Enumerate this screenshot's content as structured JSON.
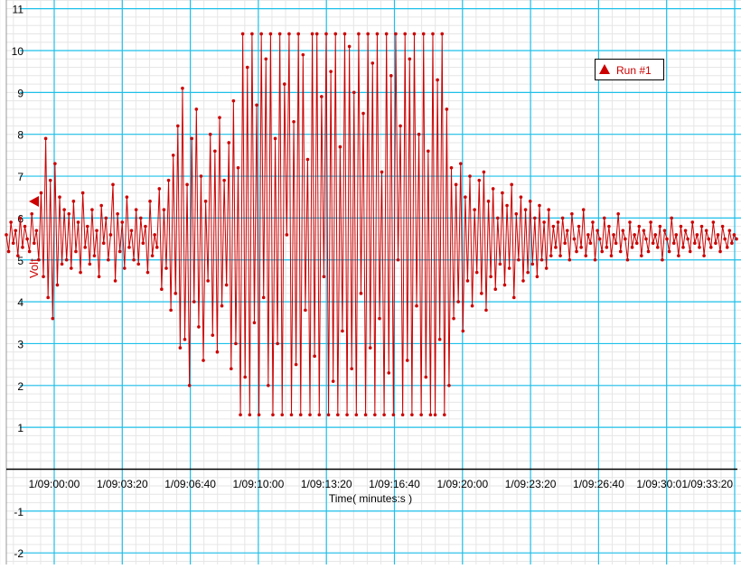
{
  "chart_data": {
    "type": "line",
    "title": "",
    "xlabel": "Time( minutes:s )",
    "ylabel": "Volt",
    "ylim": [
      -2,
      11
    ],
    "yticks": [
      "11",
      "10",
      "9",
      "8",
      "7",
      "6",
      "5",
      "4",
      "3",
      "2",
      "1",
      "-1",
      "-2"
    ],
    "xticks": [
      "1/09:00:00",
      "1/09:03:20",
      "1/09:06:40",
      "1/09:10:00",
      "1/09:13:20",
      "1/09:16:40",
      "1/09:20:00",
      "1/09:23:20",
      "1/09:26:40",
      "1/09:30:01/09:33:20"
    ],
    "x_start": "1/08:57:40",
    "x_end": "1/09:33:20",
    "grid": true,
    "legend_position": "top-right",
    "colors": {
      "series": "#cc0000",
      "major_grid": "#1ec0ea",
      "minor_grid": "#e6e6e6",
      "axis": "#000000"
    },
    "series": [
      {
        "name": "Run #1",
        "marker": "triangle",
        "values": [
          5.6,
          5.2,
          5.9,
          5.4,
          5.7,
          5.1,
          6.0,
          5.3,
          5.8,
          5.5,
          5.2,
          6.1,
          5.4,
          5.7,
          5.0,
          6.6,
          4.6,
          7.9,
          4.1,
          6.9,
          3.6,
          7.3,
          4.4,
          6.5,
          4.9,
          6.2,
          5.0,
          6.1,
          4.8,
          6.4,
          5.2,
          5.9,
          4.7,
          6.6,
          5.3,
          5.8,
          4.9,
          6.2,
          5.1,
          5.7,
          4.6,
          6.3,
          5.4,
          6.0,
          5.0,
          5.6,
          6.8,
          4.5,
          6.1,
          5.2,
          5.9,
          4.8,
          6.5,
          5.3,
          5.7,
          5.0,
          6.2,
          4.9,
          6.0,
          5.4,
          5.8,
          4.7,
          6.4,
          5.1,
          5.6,
          5.3,
          6.7,
          4.3,
          6.2,
          4.8,
          6.9,
          3.8,
          7.5,
          4.2,
          8.2,
          2.9,
          9.1,
          3.1,
          6.8,
          2.0,
          7.9,
          4.0,
          8.6,
          3.4,
          7.0,
          2.6,
          6.4,
          4.5,
          8.0,
          3.2,
          7.6,
          2.8,
          8.4,
          3.9,
          6.9,
          4.4,
          7.8,
          2.4,
          8.8,
          3.0,
          7.2,
          1.3,
          10.4,
          2.2,
          9.6,
          1.3,
          10.4,
          3.5,
          8.7,
          1.3,
          10.4,
          4.1,
          9.8,
          2.0,
          10.4,
          1.3,
          7.9,
          3.0,
          10.4,
          1.3,
          9.2,
          5.6,
          10.4,
          1.3,
          8.3,
          2.5,
          10.4,
          1.3,
          9.9,
          3.8,
          7.4,
          1.3,
          10.4,
          2.7,
          10.4,
          1.3,
          8.9,
          4.6,
          10.4,
          1.3,
          9.5,
          2.1,
          10.4,
          1.3,
          7.7,
          3.3,
          10.4,
          1.3,
          10.1,
          2.4,
          9.0,
          1.3,
          10.4,
          4.2,
          8.5,
          1.3,
          10.4,
          2.9,
          9.7,
          1.3,
          10.4,
          3.6,
          7.1,
          1.3,
          10.4,
          2.3,
          9.4,
          1.3,
          10.4,
          5.0,
          8.2,
          1.3,
          10.4,
          2.6,
          9.8,
          1.3,
          10.4,
          3.9,
          8.0,
          1.3,
          10.4,
          2.2,
          7.6,
          1.3,
          10.4,
          1.3,
          9.3,
          3.1,
          10.4,
          1.3,
          8.6,
          2.0,
          7.2,
          3.6,
          6.8,
          4.0,
          7.3,
          3.3,
          6.5,
          4.5,
          7.0,
          3.9,
          6.2,
          4.7,
          6.9,
          4.2,
          7.1,
          3.8,
          6.4,
          4.6,
          6.7,
          4.3,
          6.0,
          4.9,
          6.6,
          4.4,
          6.3,
          4.8,
          6.8,
          4.1,
          6.1,
          5.0,
          6.5,
          4.5,
          6.2,
          4.7,
          6.4,
          4.9,
          6.0,
          4.6,
          6.3,
          5.0,
          5.9,
          4.8,
          6.2,
          5.1,
          5.8,
          5.3,
          5.9,
          5.1,
          6.0,
          5.4,
          5.7,
          5.0,
          6.1,
          5.5,
          5.2,
          5.8,
          5.3,
          6.2,
          5.1,
          5.6,
          5.4,
          5.9,
          5.0,
          5.7,
          5.5,
          5.2,
          6.0,
          5.3,
          5.8,
          5.1,
          5.6,
          5.4,
          6.1,
          5.2,
          5.7,
          5.5,
          5.0,
          5.9,
          5.3,
          5.6,
          5.4,
          5.8,
          5.1,
          5.7,
          5.5,
          5.2,
          5.9,
          5.4,
          5.6,
          5.3,
          5.8,
          5.0,
          5.7,
          5.5,
          5.2,
          6.0,
          5.4,
          5.6,
          5.1,
          5.8,
          5.3,
          5.7,
          5.5,
          5.2,
          5.9,
          5.4,
          5.6,
          5.3,
          5.8,
          5.1,
          5.7,
          5.5,
          5.3,
          5.9,
          5.4,
          5.6,
          5.2,
          5.8,
          5.5,
          5.3,
          5.7,
          5.4,
          5.6,
          5.5
        ]
      }
    ]
  }
}
